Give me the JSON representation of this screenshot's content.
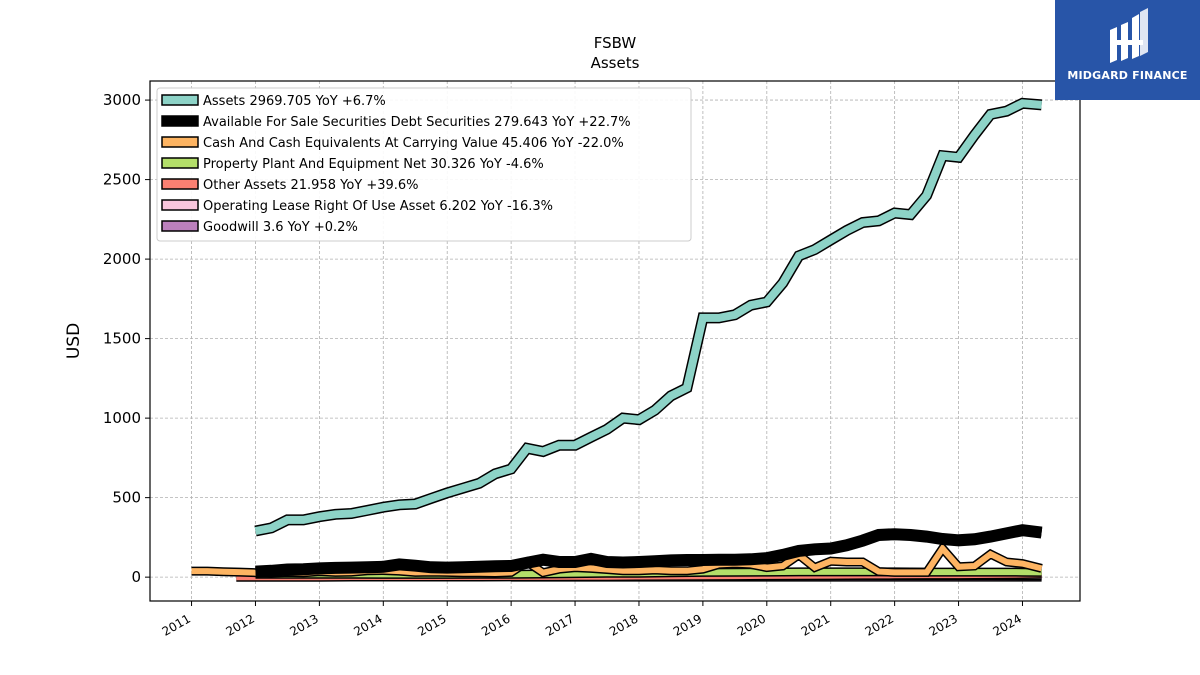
{
  "logo": {
    "text": "MIDGARD FINANCE",
    "color": "#2855a8"
  },
  "chart_data": {
    "type": "line",
    "title": "FSBW",
    "subtitle": "Assets",
    "xlabel": "",
    "ylabel": "USD",
    "xlim": [
      2010.35,
      2024.9
    ],
    "ylim": [
      -150,
      3120
    ],
    "x_ticks": [
      "2011",
      "2012",
      "2013",
      "2014",
      "2015",
      "2016",
      "2017",
      "2018",
      "2019",
      "2020",
      "2021",
      "2022",
      "2023",
      "2024"
    ],
    "y_ticks": [
      0,
      500,
      1000,
      1500,
      2000,
      2500,
      3000
    ],
    "grid": true,
    "legend_position": "top-left",
    "series": [
      {
        "name": "Assets  2969.705 YoY +6.7%",
        "color": "#8dd3c7",
        "width": 8,
        "x": [
          2012.0,
          2012.25,
          2012.5,
          2012.75,
          2013.0,
          2013.25,
          2013.5,
          2013.75,
          2014.0,
          2014.25,
          2014.5,
          2014.75,
          2015.0,
          2015.25,
          2015.5,
          2015.75,
          2016.0,
          2016.25,
          2016.5,
          2016.75,
          2017.0,
          2017.25,
          2017.5,
          2017.75,
          2018.0,
          2018.25,
          2018.5,
          2018.75,
          2019.0,
          2019.25,
          2019.5,
          2019.75,
          2020.0,
          2020.25,
          2020.5,
          2020.75,
          2021.0,
          2021.25,
          2021.5,
          2021.75,
          2022.0,
          2022.25,
          2022.5,
          2022.75,
          2023.0,
          2023.25,
          2023.5,
          2023.75,
          2024.0,
          2024.3
        ],
        "values": [
          290,
          310,
          360,
          360,
          380,
          395,
          400,
          420,
          440,
          455,
          460,
          495,
          530,
          560,
          590,
          650,
          680,
          810,
          790,
          830,
          830,
          880,
          930,
          1000,
          990,
          1050,
          1140,
          1190,
          1630,
          1630,
          1650,
          1710,
          1730,
          1850,
          2020,
          2060,
          2120,
          2180,
          2230,
          2240,
          2290,
          2280,
          2400,
          2650,
          2640,
          2780,
          2910,
          2930,
          2980,
          2970
        ]
      },
      {
        "name": "Available For Sale Securities Debt Securities  279.643 YoY +22.7%",
        "color": "#000000",
        "width": 9,
        "x": [
          2012.0,
          2012.25,
          2012.5,
          2012.75,
          2013.0,
          2013.25,
          2013.5,
          2013.75,
          2014.0,
          2014.25,
          2014.5,
          2014.75,
          2015.0,
          2015.25,
          2015.5,
          2015.75,
          2016.0,
          2016.25,
          2016.5,
          2016.75,
          2017.0,
          2017.25,
          2017.5,
          2017.75,
          2018.0,
          2018.25,
          2018.5,
          2018.75,
          2019.0,
          2019.25,
          2019.5,
          2019.75,
          2020.0,
          2020.25,
          2020.5,
          2020.75,
          2021.0,
          2021.25,
          2021.5,
          2021.75,
          2022.0,
          2022.25,
          2022.5,
          2022.75,
          2023.0,
          2023.25,
          2023.5,
          2023.75,
          2024.0,
          2024.3
        ],
        "values": [
          35,
          40,
          48,
          50,
          55,
          58,
          60,
          62,
          65,
          80,
          72,
          62,
          60,
          62,
          65,
          68,
          70,
          90,
          110,
          95,
          95,
          115,
          95,
          92,
          95,
          100,
          105,
          108,
          108,
          110,
          110,
          112,
          120,
          140,
          165,
          175,
          180,
          200,
          230,
          265,
          270,
          265,
          255,
          240,
          232,
          238,
          255,
          275,
          295,
          280
        ]
      },
      {
        "name": "Cash And Cash Equivalents At Carrying Value  45.406 YoY -22.0%",
        "color": "#fdb462",
        "width": 6,
        "x": [
          2011.0,
          2011.25,
          2011.5,
          2011.75,
          2012.0,
          2012.25,
          2012.5,
          2012.75,
          2013.0,
          2013.25,
          2013.5,
          2013.75,
          2014.0,
          2014.25,
          2014.5,
          2014.75,
          2015.0,
          2015.25,
          2015.5,
          2015.75,
          2016.0,
          2016.25,
          2016.5,
          2016.75,
          2017.0,
          2017.25,
          2017.5,
          2017.75,
          2018.0,
          2018.25,
          2018.5,
          2018.75,
          2019.0,
          2019.25,
          2019.5,
          2019.75,
          2020.0,
          2020.25,
          2020.5,
          2020.75,
          2021.0,
          2021.25,
          2021.5,
          2021.75,
          2022.0,
          2022.25,
          2022.5,
          2022.75,
          2023.0,
          2023.25,
          2023.5,
          2023.75,
          2024.0,
          2024.3
        ],
        "values": [
          38,
          38,
          34,
          32,
          28,
          26,
          30,
          28,
          35,
          30,
          32,
          40,
          42,
          38,
          30,
          32,
          30,
          28,
          28,
          26,
          30,
          95,
          28,
          50,
          60,
          55,
          48,
          40,
          40,
          45,
          40,
          40,
          50,
          80,
          85,
          80,
          60,
          70,
          140,
          60,
          100,
          95,
          95,
          35,
          30,
          30,
          30,
          180,
          65,
          70,
          145,
          95,
          85,
          55
        ]
      },
      {
        "name": "Property Plant And Equipment Net  30.326 YoY -4.6%",
        "color": "#b3de69",
        "width": 6,
        "x": [
          2012.0,
          2012.5,
          2013.0,
          2013.5,
          2014.0,
          2014.5,
          2015.0,
          2015.5,
          2016.0,
          2016.5,
          2017.0,
          2017.5,
          2018.0,
          2018.5,
          2019.0,
          2019.5,
          2020.0,
          2020.5,
          2021.0,
          2021.5,
          2022.0,
          2022.5,
          2023.0,
          2023.5,
          2024.0,
          2024.3
        ],
        "values": [
          18,
          18,
          18,
          18,
          17,
          17,
          17,
          18,
          18,
          20,
          22,
          24,
          25,
          28,
          30,
          31,
          32,
          33,
          33,
          33,
          33,
          32,
          32,
          32,
          31,
          30
        ]
      },
      {
        "name": "Other Assets  21.958 YoY +39.6%",
        "color": "#fb8072",
        "width": 7,
        "x": [
          2011.7,
          2012.0,
          2012.5,
          2013.0,
          2013.5,
          2014.0,
          2014.5,
          2015.0,
          2015.5,
          2016.0,
          2016.5,
          2017.0,
          2017.5,
          2018.0,
          2018.5,
          2019.0,
          2019.5,
          2020.0,
          2020.5,
          2021.0,
          2021.5,
          2022.0,
          2022.5,
          2023.0,
          2023.5,
          2024.0,
          2024.3
        ],
        "values": [
          2,
          2,
          3,
          3,
          4,
          4,
          4,
          4,
          4,
          5,
          5,
          6,
          6,
          7,
          8,
          9,
          10,
          11,
          12,
          13,
          14,
          15,
          16,
          16,
          17,
          20,
          22
        ]
      },
      {
        "name": "Operating Lease Right Of Use Asset  6.202 YoY -16.3%",
        "color": "#f9c5dc",
        "width": 5,
        "x": [
          2019.0,
          2019.5,
          2020.0,
          2020.5,
          2021.0,
          2021.5,
          2022.0,
          2022.5,
          2023.0,
          2023.5,
          2024.0,
          2024.3
        ],
        "values": [
          9,
          9,
          8,
          8,
          8,
          8,
          7,
          7,
          7,
          7,
          6,
          6
        ]
      },
      {
        "name": "Goodwill  3.6 YoY +0.2%",
        "color": "#bc80bd",
        "width": 7,
        "x": [
          2016.0,
          2024.3
        ],
        "values": [
          3.6,
          3.6
        ]
      }
    ]
  }
}
